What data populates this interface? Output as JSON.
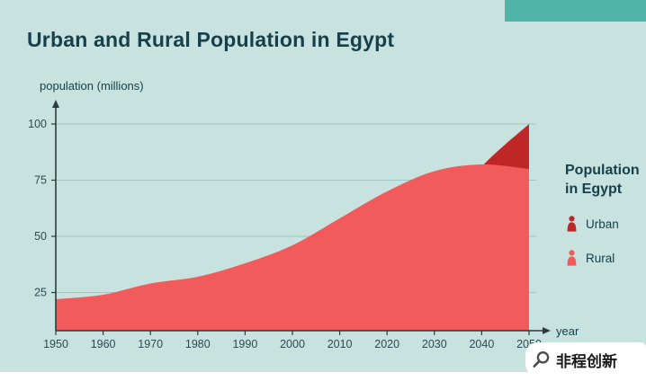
{
  "title": "Urban and Rural Population in Egypt",
  "colors": {
    "background": "#c7e2df",
    "accent_bar": "#50b4aa",
    "heading_text": "#17404a",
    "axis": "#2e3a3c",
    "axis_text": "#2c4a52",
    "grid": "#a0c6c2",
    "urban": "#bf2727",
    "rural": "#f15b5b"
  },
  "chart_data": {
    "type": "area",
    "title": "Urban and Rural Population in Egypt",
    "xlabel": "year",
    "ylabel": "population (millions)",
    "x": [
      1950,
      1960,
      1970,
      1980,
      1990,
      2000,
      2010,
      2020,
      2030,
      2040,
      2050
    ],
    "series": [
      {
        "name": "Urban",
        "color": "#bf2727",
        "values": [
          10,
          14,
          18,
          22,
          27,
          31,
          36,
          43,
          55,
          81,
          100
        ]
      },
      {
        "name": "Rural",
        "color": "#f15b5b",
        "values": [
          22,
          24,
          29,
          32,
          38,
          46,
          58,
          70,
          79,
          82,
          80
        ]
      }
    ],
    "y_ticks": [
      25,
      50,
      75,
      100
    ],
    "ylim": [
      0,
      107
    ],
    "grid": "horizontal",
    "legend_position": "right"
  },
  "legend": {
    "title": "Population in Egypt",
    "items": [
      {
        "label": "Urban"
      },
      {
        "label": "Rural"
      }
    ]
  },
  "watermark": {
    "text": "非程创新"
  }
}
